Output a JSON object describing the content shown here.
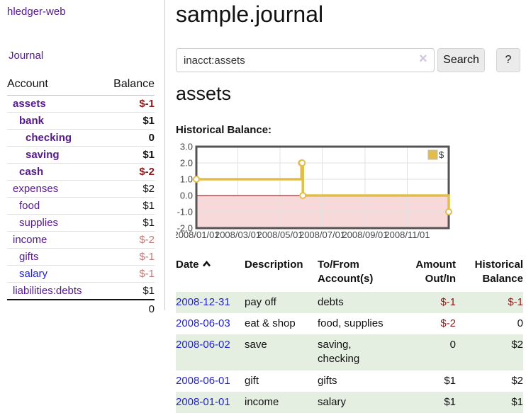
{
  "sidebar": {
    "brand": "hledger-web",
    "nav": {
      "journal_label": "Journal"
    },
    "accounts_table": {
      "headers": {
        "account": "Account",
        "balance": "Balance"
      },
      "rows": [
        {
          "name": "assets",
          "indent": 1,
          "balance": "$-1",
          "bold": true,
          "balance_style": "negative-strong"
        },
        {
          "name": "bank",
          "indent": 2,
          "balance": "$1",
          "bold": true,
          "balance_style": "normal"
        },
        {
          "name": "checking",
          "indent": 3,
          "balance": "0",
          "bold": true,
          "balance_style": "normal"
        },
        {
          "name": "saving",
          "indent": 3,
          "balance": "$1",
          "bold": true,
          "balance_style": "normal"
        },
        {
          "name": "cash",
          "indent": 2,
          "balance": "$-2",
          "bold": true,
          "balance_style": "negative-strong"
        },
        {
          "name": "expenses",
          "indent": 1,
          "balance": "$2",
          "bold": false,
          "balance_style": "normal"
        },
        {
          "name": "food",
          "indent": 2,
          "balance": "$1",
          "bold": false,
          "balance_style": "normal"
        },
        {
          "name": "supplies",
          "indent": 2,
          "balance": "$1",
          "bold": false,
          "balance_style": "normal"
        },
        {
          "name": "income",
          "indent": 1,
          "balance": "$-2",
          "bold": false,
          "balance_style": "negative-soft"
        },
        {
          "name": "gifts",
          "indent": 2,
          "balance": "$-1",
          "bold": false,
          "balance_style": "negative-soft"
        },
        {
          "name": "salary",
          "indent": 2,
          "balance": "$-1",
          "bold": false,
          "balance_style": "negative-soft",
          "link_color": "blue"
        },
        {
          "name": "liabilities:debts",
          "indent": 1,
          "balance": "$1",
          "bold": false,
          "balance_style": "normal"
        }
      ],
      "total": "0"
    }
  },
  "header": {
    "title": "sample.journal"
  },
  "search": {
    "value": "inacct:assets",
    "clear_icon": "×",
    "button_label": "Search",
    "help_label": "?"
  },
  "account_page": {
    "heading": "assets",
    "chart_label": "Historical Balance:"
  },
  "chart_data": {
    "type": "line",
    "step": true,
    "title": "Historical Balance",
    "series": [
      {
        "name": "$",
        "color": "#e3bd4a",
        "points": [
          [
            "2008-01-01",
            1
          ],
          [
            "2008-06-01",
            2
          ],
          [
            "2008-06-02",
            2
          ],
          [
            "2008-06-03",
            0
          ],
          [
            "2008-12-31",
            -1
          ]
        ]
      }
    ],
    "x_range": [
      "2008-01-01",
      "2008-12-31"
    ],
    "x_ticks": [
      "2008/01/01",
      "2008/03/01",
      "2008/05/01",
      "2008/07/01",
      "2008/09/01",
      "2008/11/01"
    ],
    "y_ticks": [
      3.0,
      2.0,
      1.0,
      0.0,
      -1.0,
      -2.0
    ],
    "ylim": [
      -2,
      3
    ],
    "legend": "$",
    "legend_position": "top-right",
    "grid": true,
    "zero_line_color": "#8b0000",
    "negative_region_color": "#f8d9d9",
    "grid_color": "#e2e2e2",
    "border_color": "#545454",
    "axis_text_color": "#454545"
  },
  "transactions": {
    "headers": {
      "date": "Date",
      "description": "Description",
      "accounts": "To/From Account(s)",
      "amount": "Amount Out/In",
      "balance": "Historical Balance"
    },
    "rows": [
      {
        "date": "2008-12-31",
        "description": "pay off",
        "accounts": "debts",
        "amount": "$-1",
        "balance": "$-1"
      },
      {
        "date": "2008-06-03",
        "description": "eat & shop",
        "accounts": "food, supplies",
        "amount": "$-2",
        "balance": "0"
      },
      {
        "date": "2008-06-02",
        "description": "save",
        "accounts": "saving, checking",
        "amount": "0",
        "balance": "$2"
      },
      {
        "date": "2008-06-01",
        "description": "gift",
        "accounts": "gifts",
        "amount": "$1",
        "balance": "$2"
      },
      {
        "date": "2008-01-01",
        "description": "income",
        "accounts": "salary",
        "amount": "$1",
        "balance": "$1"
      }
    ]
  }
}
